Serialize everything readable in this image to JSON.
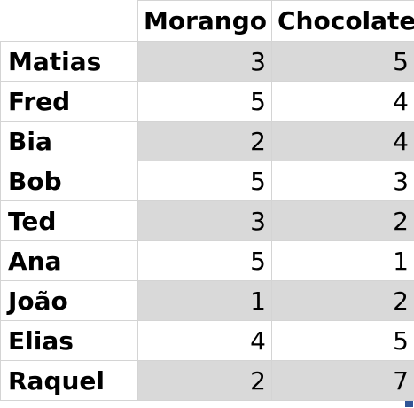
{
  "headers": [
    "Morango",
    "Chocolate"
  ],
  "rows": [
    {
      "name": "Matias",
      "morango": "3",
      "chocolate": "5",
      "shaded": true
    },
    {
      "name": "Fred",
      "morango": "5",
      "chocolate": "4",
      "shaded": false
    },
    {
      "name": "Bia",
      "morango": "2",
      "chocolate": "4",
      "shaded": true
    },
    {
      "name": "Bob",
      "morango": "5",
      "chocolate": "3",
      "shaded": false
    },
    {
      "name": "Ted",
      "morango": "3",
      "chocolate": "2",
      "shaded": true
    },
    {
      "name": "Ana",
      "morango": "5",
      "chocolate": "1",
      "shaded": false
    },
    {
      "name": "João",
      "morango": "1",
      "chocolate": "2",
      "shaded": true
    },
    {
      "name": "Elias",
      "morango": "4",
      "chocolate": "5",
      "shaded": false
    },
    {
      "name": "Raquel",
      "morango": "2",
      "chocolate": "7",
      "shaded": true
    }
  ],
  "colors": {
    "shade": "#d9d9d9",
    "gridline": "#d4d4d4",
    "selection_handle": "#2f5597"
  }
}
